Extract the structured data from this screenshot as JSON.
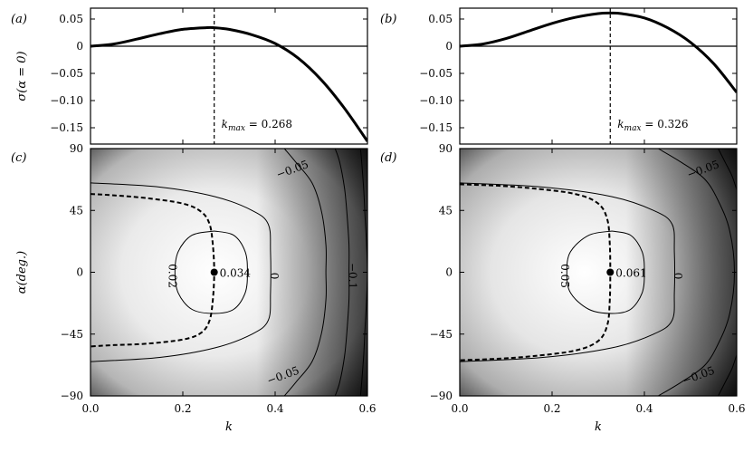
{
  "figure": {
    "panels": [
      {
        "label": "(a)"
      },
      {
        "label": "(b)"
      },
      {
        "label": "(c)"
      },
      {
        "label": "(d)"
      }
    ]
  },
  "chart_data": [
    {
      "type": "line",
      "panel": "(a)",
      "xlabel": "",
      "ylabel": "σ(α = 0)",
      "xlim": [
        0.0,
        0.6
      ],
      "ylim": [
        -0.18,
        0.07
      ],
      "yticks": [
        0.05,
        0.0,
        -0.05,
        -0.1,
        -0.15
      ],
      "yticklabels": [
        "0.05",
        "0",
        "−0.05",
        "−0.10",
        "−0.15"
      ],
      "series": [
        {
          "name": "sigma",
          "x": [
            0.0,
            0.05,
            0.1,
            0.15,
            0.2,
            0.25,
            0.268,
            0.3,
            0.35,
            0.4,
            0.45,
            0.5,
            0.55,
            0.6
          ],
          "values": [
            0.0,
            0.004,
            0.013,
            0.023,
            0.031,
            0.034,
            0.034,
            0.031,
            0.021,
            0.005,
            -0.022,
            -0.062,
            -0.114,
            -0.175
          ]
        }
      ],
      "kmax": 0.268,
      "kmax_label": "k_max = 0.268"
    },
    {
      "type": "line",
      "panel": "(b)",
      "xlabel": "",
      "ylabel": "",
      "xlim": [
        0.0,
        0.6
      ],
      "ylim": [
        -0.18,
        0.07
      ],
      "yticks": [
        0.05,
        0.0,
        -0.05,
        -0.1,
        -0.15
      ],
      "yticklabels": [
        "0.05",
        "0",
        "−0.05",
        "−0.10",
        "−0.15"
      ],
      "series": [
        {
          "name": "sigma",
          "x": [
            0.0,
            0.05,
            0.1,
            0.15,
            0.2,
            0.25,
            0.3,
            0.326,
            0.35,
            0.4,
            0.45,
            0.5,
            0.55,
            0.6
          ],
          "values": [
            0.0,
            0.004,
            0.014,
            0.028,
            0.042,
            0.053,
            0.06,
            0.061,
            0.06,
            0.052,
            0.034,
            0.007,
            -0.032,
            -0.085
          ]
        }
      ],
      "kmax": 0.326,
      "kmax_label": "k_max = 0.326"
    },
    {
      "type": "heatmap",
      "panel": "(c)",
      "xlabel": "k",
      "ylabel": "α(deg.)",
      "xlim": [
        0.0,
        0.6
      ],
      "ylim": [
        -90,
        90
      ],
      "xticks": [
        0.0,
        0.2,
        0.4,
        0.6
      ],
      "xticklabels": [
        "0.0",
        "0.2",
        "0.4",
        "0.6"
      ],
      "yticks": [
        90,
        45,
        0,
        -45,
        -90
      ],
      "yticklabels": [
        "90",
        "45",
        "0",
        "−45",
        "−90"
      ],
      "kmax": 0.268,
      "max_value": 0.034,
      "max_label": "0.034",
      "contours": [
        {
          "level": 0.02,
          "label": "0.02",
          "points": [
            [
              0.268,
              30
            ],
            [
              0.31,
              27
            ],
            [
              0.335,
              15
            ],
            [
              0.34,
              0
            ],
            [
              0.335,
              -15
            ],
            [
              0.31,
              -27
            ],
            [
              0.268,
              -30
            ],
            [
              0.22,
              -27
            ],
            [
              0.19,
              -15
            ],
            [
              0.183,
              0
            ],
            [
              0.19,
              15
            ],
            [
              0.22,
              27
            ],
            [
              0.268,
              30
            ]
          ]
        },
        {
          "level": 0.0,
          "label": "0",
          "points": [
            [
              0.0,
              65
            ],
            [
              0.15,
              62
            ],
            [
              0.27,
              55
            ],
            [
              0.35,
              45
            ],
            [
              0.385,
              35
            ],
            [
              0.39,
              15
            ],
            [
              0.39,
              -15
            ],
            [
              0.385,
              -35
            ],
            [
              0.35,
              -45
            ],
            [
              0.27,
              -55
            ],
            [
              0.15,
              -62
            ],
            [
              0.0,
              -65
            ]
          ]
        },
        {
          "level": -0.05,
          "label": "−0.05",
          "points": [
            [
              0.42,
              90
            ],
            [
              0.445,
              80
            ],
            [
              0.48,
              65
            ],
            [
              0.5,
              45
            ],
            [
              0.51,
              20
            ],
            [
              0.51,
              0
            ],
            [
              0.51,
              -20
            ],
            [
              0.5,
              -45
            ],
            [
              0.48,
              -65
            ],
            [
              0.445,
              -80
            ],
            [
              0.42,
              -90
            ]
          ]
        },
        {
          "level": -0.1,
          "label": "−0.1",
          "points": [
            [
              0.53,
              90
            ],
            [
              0.54,
              80
            ],
            [
              0.55,
              62
            ],
            [
              0.555,
              45
            ],
            [
              0.56,
              20
            ],
            [
              0.56,
              0
            ],
            [
              0.56,
              -20
            ],
            [
              0.555,
              -45
            ],
            [
              0.55,
              -62
            ],
            [
              0.54,
              -80
            ],
            [
              0.53,
              -90
            ]
          ]
        },
        {
          "level": -0.15,
          "label": "",
          "points": [
            [
              0.585,
              90
            ],
            [
              0.588,
              78
            ],
            [
              0.592,
              60
            ],
            [
              0.595,
              40
            ],
            [
              0.598,
              20
            ],
            [
              0.6,
              0
            ],
            [
              0.598,
              -20
            ],
            [
              0.595,
              -40
            ],
            [
              0.592,
              -60
            ],
            [
              0.588,
              -78
            ],
            [
              0.585,
              -90
            ]
          ]
        }
      ],
      "ridge": [
        [
          0.0,
          57
        ],
        [
          0.05,
          56
        ],
        [
          0.12,
          54
        ],
        [
          0.2,
          50
        ],
        [
          0.24,
          44
        ],
        [
          0.258,
          35
        ],
        [
          0.265,
          20
        ],
        [
          0.268,
          0
        ],
        [
          0.265,
          -20
        ],
        [
          0.258,
          -35
        ],
        [
          0.24,
          -44
        ],
        [
          0.2,
          -49
        ],
        [
          0.12,
          -52
        ],
        [
          0.05,
          -53
        ],
        [
          0.0,
          -54
        ]
      ]
    },
    {
      "type": "heatmap",
      "panel": "(d)",
      "xlabel": "k",
      "ylabel": "",
      "xlim": [
        0.0,
        0.6
      ],
      "ylim": [
        -90,
        90
      ],
      "xticks": [
        0.0,
        0.2,
        0.4,
        0.6
      ],
      "xticklabels": [
        "0.0",
        "0.2",
        "0.4",
        "0.6"
      ],
      "yticks": [
        90,
        45,
        0,
        -45,
        -90
      ],
      "yticklabels": [
        "90",
        "45",
        "0",
        "−45",
        "−90"
      ],
      "kmax": 0.326,
      "max_value": 0.061,
      "max_label": "0.061",
      "contours": [
        {
          "level": 0.05,
          "label": "0.05",
          "points": [
            [
              0.33,
              30
            ],
            [
              0.37,
              27
            ],
            [
              0.395,
              15
            ],
            [
              0.4,
              0
            ],
            [
              0.395,
              -15
            ],
            [
              0.37,
              -27
            ],
            [
              0.33,
              -30
            ],
            [
              0.28,
              -27
            ],
            [
              0.24,
              -15
            ],
            [
              0.232,
              0
            ],
            [
              0.24,
              15
            ],
            [
              0.28,
              27
            ],
            [
              0.33,
              30
            ]
          ]
        },
        {
          "level": 0.0,
          "label": "0",
          "points": [
            [
              0.0,
              65
            ],
            [
              0.18,
              62
            ],
            [
              0.33,
              55
            ],
            [
              0.42,
              45
            ],
            [
              0.46,
              35
            ],
            [
              0.465,
              15
            ],
            [
              0.465,
              -15
            ],
            [
              0.46,
              -35
            ],
            [
              0.42,
              -45
            ],
            [
              0.33,
              -55
            ],
            [
              0.18,
              -62
            ],
            [
              0.0,
              -65
            ]
          ]
        },
        {
          "level": -0.05,
          "label": "−0.05",
          "points": [
            [
              0.43,
              90
            ],
            [
              0.48,
              80
            ],
            [
              0.53,
              68
            ],
            [
              0.56,
              52
            ],
            [
              0.585,
              30
            ],
            [
              0.595,
              0
            ],
            [
              0.585,
              -30
            ],
            [
              0.56,
              -52
            ],
            [
              0.53,
              -68
            ],
            [
              0.48,
              -80
            ],
            [
              0.43,
              -90
            ]
          ]
        },
        {
          "level": -0.1,
          "label": "",
          "points": [
            [
              0.56,
              90
            ],
            [
              0.575,
              80
            ],
            [
              0.59,
              70
            ],
            [
              0.6,
              60
            ]
          ]
        },
        {
          "level": -0.1,
          "label": "",
          "points": [
            [
              0.6,
              -60
            ],
            [
              0.59,
              -70
            ],
            [
              0.575,
              -80
            ],
            [
              0.56,
              -90
            ]
          ]
        }
      ],
      "ridge": [
        [
          0.0,
          64
        ],
        [
          0.08,
          63
        ],
        [
          0.16,
          61
        ],
        [
          0.25,
          57
        ],
        [
          0.3,
          50
        ],
        [
          0.32,
          38
        ],
        [
          0.325,
          20
        ],
        [
          0.326,
          0
        ],
        [
          0.325,
          -20
        ],
        [
          0.32,
          -38
        ],
        [
          0.3,
          -50
        ],
        [
          0.25,
          -57
        ],
        [
          0.16,
          -61
        ],
        [
          0.08,
          -63
        ],
        [
          0.0,
          -64
        ]
      ]
    }
  ]
}
